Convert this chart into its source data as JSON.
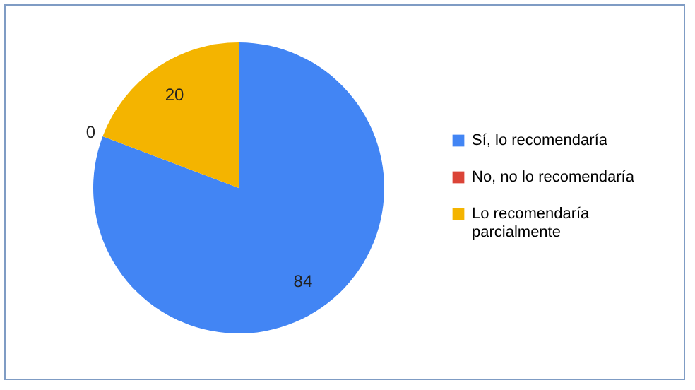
{
  "chart_data": {
    "type": "pie",
    "categories": [
      "Sí, lo recomendaría",
      "No, no lo recomendaría",
      "Lo recomendaría parcialmente"
    ],
    "values": [
      84,
      0,
      20
    ],
    "colors": [
      "#4285f4",
      "#db4437",
      "#f4b400"
    ],
    "value_labels": [
      "84",
      "0",
      "20"
    ],
    "legend": "right"
  }
}
